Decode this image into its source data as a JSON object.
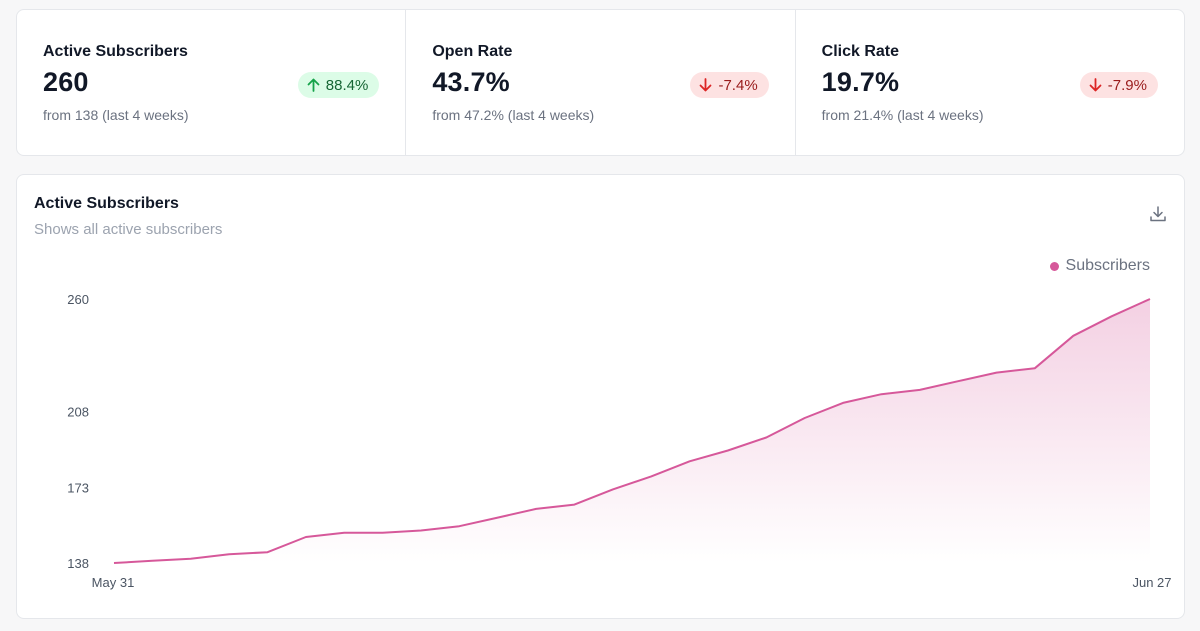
{
  "stats": [
    {
      "title": "Active Subscribers",
      "value": "260",
      "change": "88.4%",
      "direction": "up",
      "sub": "from 138 (last 4 weeks)"
    },
    {
      "title": "Open Rate",
      "value": "43.7%",
      "change": "-7.4%",
      "direction": "down",
      "sub": "from 47.2% (last 4 weeks)"
    },
    {
      "title": "Click Rate",
      "value": "19.7%",
      "change": "-7.9%",
      "direction": "down",
      "sub": "from 21.4% (last 4 weeks)"
    }
  ],
  "chart_card": {
    "title": "Active Subscribers",
    "subtitle": "Shows all active subscribers",
    "download_icon": "download-icon"
  },
  "colors": {
    "series": "#d6589a",
    "up_badge_bg": "#dcfce7",
    "up_badge_fg": "#166534",
    "down_badge_bg": "#fde2e2",
    "down_badge_fg": "#991b1b"
  },
  "chart_data": {
    "type": "area",
    "title": "Active Subscribers",
    "subtitle": "Shows all active subscribers",
    "legend": {
      "position": "top-right"
    },
    "grid": false,
    "ylim": [
      138,
      260
    ],
    "yticks": [
      "260",
      "208",
      "173",
      "138"
    ],
    "ytick_values": [
      260,
      208,
      173,
      138
    ],
    "xtick_labels": [
      "May 31",
      "Jun 27"
    ],
    "x": [
      "May 31",
      "Jun 1",
      "Jun 2",
      "Jun 3",
      "Jun 4",
      "Jun 5",
      "Jun 6",
      "Jun 7",
      "Jun 8",
      "Jun 9",
      "Jun 10",
      "Jun 11",
      "Jun 12",
      "Jun 13",
      "Jun 14",
      "Jun 15",
      "Jun 16",
      "Jun 17",
      "Jun 18",
      "Jun 19",
      "Jun 20",
      "Jun 21",
      "Jun 22",
      "Jun 23",
      "Jun 24",
      "Jun 25",
      "Jun 26",
      "Jun 27"
    ],
    "series": [
      {
        "name": "Subscribers",
        "values": [
          138,
          139,
          140,
          142,
          143,
          150,
          152,
          152,
          153,
          155,
          159,
          163,
          165,
          172,
          178,
          185,
          190,
          196,
          205,
          212,
          216,
          218,
          222,
          226,
          228,
          243,
          252,
          260
        ]
      }
    ]
  }
}
